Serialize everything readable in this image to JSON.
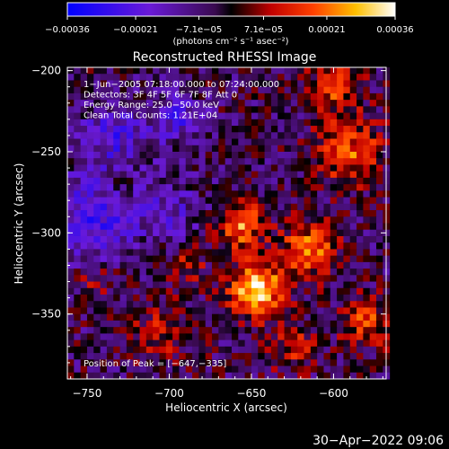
{
  "chart_data": {
    "type": "heatmap",
    "title": "Reconstructed RHESSI Image",
    "xlabel": "Heliocentric X (arcsec)",
    "ylabel": "Heliocentric Y (arcsec)",
    "xlim": [
      -762,
      -568
    ],
    "ylim": [
      -390,
      -198
    ],
    "x_ticks": [
      -750,
      -700,
      -650,
      -600
    ],
    "x_tick_labels": [
      "−750",
      "−700",
      "−650",
      "−600"
    ],
    "y_ticks": [
      -200,
      -250,
      -300,
      -350
    ],
    "y_tick_labels": [
      "−200",
      "−250",
      "−300",
      "−350"
    ],
    "colorbar": {
      "min": -0.00036,
      "max": 0.00036,
      "colormap": "blue-purple-black-red-orange-yellow-white",
      "ticks": [
        -0.00036,
        -0.00021,
        -7.1e-05,
        7.1e-05,
        0.00021,
        0.00036
      ],
      "tick_labels": [
        "−0.00036",
        "−0.00021",
        "−7.1e−05",
        "7.1e−05",
        "0.00021",
        "0.00036"
      ],
      "units_label": "(photons cm⁻² s⁻¹ asec⁻²)"
    },
    "annotations": [
      "1−Jun−2005 07:18:00.000 to 07:24:00.000",
      "Detectors: 3F 4F 5F 6F 7F 8F  Att 0",
      "Energy Range: 25.0−50.0 keV",
      "Clean     Total Counts: 1.21E+04"
    ],
    "peak_label": "Position of Peak = [−647,−335]",
    "peak": [
      -647,
      -335
    ],
    "peak_value": 0.00036,
    "emission_regions": [
      {
        "x": -647,
        "y": -335,
        "amplitude": 1.0,
        "spread": 16
      },
      {
        "x": -657,
        "y": -295,
        "amplitude": 0.75,
        "spread": 14
      },
      {
        "x": -615,
        "y": -310,
        "amplitude": 0.65,
        "spread": 17
      },
      {
        "x": -590,
        "y": -250,
        "amplitude": 0.6,
        "spread": 20
      },
      {
        "x": -600,
        "y": -210,
        "amplitude": 0.55,
        "spread": 15
      },
      {
        "x": -580,
        "y": -355,
        "amplitude": 0.5,
        "spread": 15
      },
      {
        "x": -625,
        "y": -370,
        "amplitude": 0.4,
        "spread": 14
      },
      {
        "x": -705,
        "y": -360,
        "amplitude": 0.35,
        "spread": 18
      },
      {
        "x": -690,
        "y": -320,
        "amplitude": 0.3,
        "spread": 12
      },
      {
        "x": -730,
        "y": -270,
        "amplitude": 0.2,
        "spread": 10
      },
      {
        "x": -745,
        "y": -330,
        "amplitude": 0.25,
        "spread": 12
      }
    ],
    "negative_regions": [
      {
        "x": -745,
        "y": -290,
        "amplitude": 0.55,
        "spread": 25
      },
      {
        "x": -735,
        "y": -240,
        "amplitude": 0.45,
        "spread": 20
      },
      {
        "x": -695,
        "y": -230,
        "amplitude": 0.45,
        "spread": 15
      },
      {
        "x": -700,
        "y": -285,
        "amplitude": 0.3,
        "spread": 20
      }
    ]
  },
  "footer": {
    "timestamp": "30−Apr−2022 09:06"
  }
}
